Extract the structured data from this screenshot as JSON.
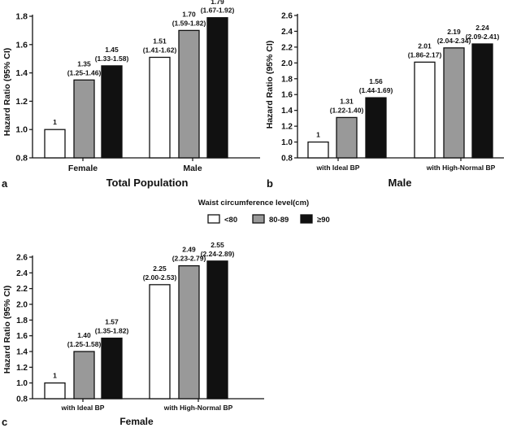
{
  "legend": {
    "title": "Waist circumference level(cm)",
    "items": [
      {
        "label": "<80",
        "color": "#ffffff"
      },
      {
        "label": "80-89",
        "color": "#999999"
      },
      {
        "label": "≥90",
        "color": "#111111"
      }
    ]
  },
  "chart_data": [
    {
      "panel": "a",
      "type": "bar",
      "title": "Total Population",
      "ylabel": "Hazard Ratio (95% CI)",
      "ylim": [
        0.8,
        1.8
      ],
      "yticks": [
        "0.8",
        "1.0",
        "1.2",
        "1.4",
        "1.6",
        "1.8"
      ],
      "categories": [
        "Female",
        "Male"
      ],
      "series": [
        {
          "name": "<80",
          "values": [
            1,
            1.51
          ],
          "labels": [
            [
              "1"
            ],
            [
              "1.51",
              "(1.41-1.62)"
            ]
          ]
        },
        {
          "name": "80-89",
          "values": [
            1.35,
            1.7
          ],
          "labels": [
            [
              "1.35",
              "(1.25-1.46)"
            ],
            [
              "1.70",
              "(1.59-1.82)"
            ]
          ]
        },
        {
          "name": "≥90",
          "values": [
            1.45,
            1.79
          ],
          "labels": [
            [
              "1.45",
              "(1.33-1.58)"
            ],
            [
              "1.79",
              "(1.67-1.92)"
            ]
          ]
        }
      ],
      "grid": false,
      "legend_position": "center, between panels"
    },
    {
      "panel": "b",
      "type": "bar",
      "title": "Male",
      "ylabel": "Hazard Ratio (95% CI)",
      "ylim": [
        0.8,
        2.6
      ],
      "yticks": [
        "0.8",
        "1.0",
        "1.2",
        "1.4",
        "1.6",
        "1.8",
        "2.0",
        "2.2",
        "2.4",
        "2.6"
      ],
      "categories": [
        "with Ideal BP",
        "with High-Normal BP"
      ],
      "series": [
        {
          "name": "<80",
          "values": [
            1,
            2.01
          ],
          "labels": [
            [
              "1"
            ],
            [
              "2.01",
              "(1.86-2.17)"
            ]
          ]
        },
        {
          "name": "80-89",
          "values": [
            1.31,
            2.19
          ],
          "labels": [
            [
              "1.31",
              "(1.22-1.40)"
            ],
            [
              "2.19",
              "(2.04-2.34)"
            ]
          ]
        },
        {
          "name": "≥90",
          "values": [
            1.56,
            2.24
          ],
          "labels": [
            [
              "1.56",
              "(1.44-1.69)"
            ],
            [
              "2.24",
              "(2.09-2.41)"
            ]
          ]
        }
      ],
      "grid": false
    },
    {
      "panel": "c",
      "type": "bar",
      "title": "Female",
      "ylabel": "Hazard Ratio (95% CI)",
      "ylim": [
        0.8,
        2.6
      ],
      "yticks": [
        "0.8",
        "1.0",
        "1.2",
        "1.4",
        "1.6",
        "1.8",
        "2.0",
        "2.2",
        "2.4",
        "2.6"
      ],
      "categories": [
        "with Ideal BP",
        "with High-Normal BP"
      ],
      "series": [
        {
          "name": "<80",
          "values": [
            1,
            2.25
          ],
          "labels": [
            [
              "1"
            ],
            [
              "2.25",
              "(2.00-2.53)"
            ]
          ]
        },
        {
          "name": "80-89",
          "values": [
            1.4,
            2.49
          ],
          "labels": [
            [
              "1.40",
              "(1.25-1.58)"
            ],
            [
              "2.49",
              "(2.23-2.79)"
            ]
          ]
        },
        {
          "name": "≥90",
          "values": [
            1.57,
            2.55
          ],
          "labels": [
            [
              "1.57",
              "(1.35-1.82)"
            ],
            [
              "2.55",
              "(2.24-2.89)"
            ]
          ]
        }
      ],
      "grid": false
    }
  ]
}
